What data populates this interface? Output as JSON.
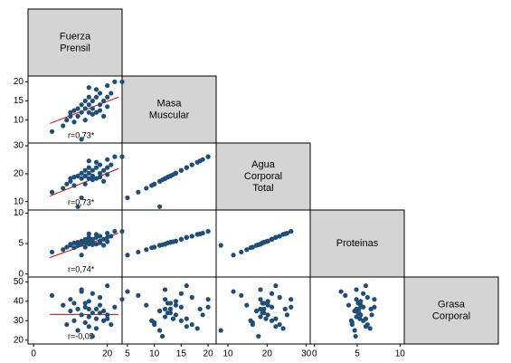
{
  "chart_data": {
    "type": "scatter_matrix",
    "color": "#1f4e79",
    "fit_color": "#e00000",
    "variables": [
      {
        "label": [
          "Fuerza",
          "Prensil"
        ],
        "lim": [
          -1.5,
          24
        ],
        "xticks": [
          0,
          20
        ]
      },
      {
        "label": [
          "Masa",
          "Muscular"
        ],
        "lim": [
          4,
          21.5
        ],
        "xticks": [
          5,
          10,
          15,
          20
        ],
        "yticks": [
          10,
          15,
          20
        ]
      },
      {
        "label": [
          "Agua",
          "Corporal",
          "Total"
        ],
        "lim": [
          7,
          31
        ],
        "xticks": [
          10,
          20,
          30
        ],
        "yticks": [
          10,
          20,
          30
        ]
      },
      {
        "label": [
          "Proteinas"
        ],
        "lim": [
          -0.5,
          10.5
        ],
        "xticks": [
          0,
          5,
          10
        ],
        "yticks": [
          0,
          5,
          10
        ]
      },
      {
        "label": [
          "Grasa",
          "Corporal"
        ],
        "lim": [
          18,
          52.5
        ],
        "yticks": [
          20,
          30,
          40,
          50
        ]
      }
    ],
    "correlations": [
      {
        "label": "r=0,73*",
        "fit_x": [
          4.4,
          23
        ],
        "fit_y": [
          9.1,
          16
        ]
      },
      {
        "label": "r=0,73*",
        "fit_x": [
          4.4,
          23
        ],
        "fit_y": [
          12,
          21.8
        ]
      },
      {
        "label": "r=0,74*",
        "fit_x": [
          4.4,
          23
        ],
        "fit_y": [
          2.7,
          6.7
        ]
      },
      {
        "label": "r=-0,05",
        "fit_x": [
          4.4,
          23
        ],
        "fit_y": [
          33.2,
          33.2
        ]
      }
    ],
    "observations": [
      [
        5,
        7,
        13.4,
        3.6,
        43
      ],
      [
        8,
        8.5,
        14.8,
        4.0,
        38
      ],
      [
        9,
        10,
        16.3,
        4.4,
        28
      ],
      [
        10,
        11,
        17.3,
        4.7,
        35
      ],
      [
        10,
        12,
        18.3,
        4.9,
        41
      ],
      [
        11,
        9.5,
        15.8,
        4.3,
        30
      ],
      [
        12,
        13,
        19.2,
        5.2,
        36
      ],
      [
        12,
        11,
        8.2,
        4.7,
        25
      ],
      [
        13,
        12,
        18.3,
        4.9,
        46
      ],
      [
        13,
        14,
        20.2,
        5.4,
        33
      ],
      [
        14,
        13,
        19.2,
        5.2,
        39
      ],
      [
        14,
        10,
        16.3,
        4.4,
        29
      ],
      [
        14,
        15,
        21.2,
        5.7,
        37
      ],
      [
        15,
        12,
        18.3,
        4.9,
        32
      ],
      [
        15,
        14,
        20.2,
        5.4,
        40
      ],
      [
        15,
        16,
        22.2,
        6.0,
        27
      ],
      [
        16,
        13,
        19.2,
        5.2,
        34
      ],
      [
        16,
        15,
        21.2,
        5.7,
        44
      ],
      [
        17,
        16,
        22.2,
        6.0,
        31
      ],
      [
        17,
        12,
        18.3,
        4.9,
        36
      ],
      [
        17,
        18,
        24.1,
        6.5,
        26
      ],
      [
        18,
        14,
        20.2,
        5.4,
        38
      ],
      [
        18,
        17,
        23.2,
        6.2,
        42
      ],
      [
        19,
        15,
        21.2,
        5.7,
        30
      ],
      [
        19,
        11,
        17.3,
        4.7,
        35
      ],
      [
        20,
        16,
        22.2,
        6.0,
        48
      ],
      [
        20,
        19,
        25.1,
        6.7,
        33
      ],
      [
        21,
        17,
        23.2,
        6.2,
        28
      ],
      [
        22,
        20,
        26.1,
        7.0,
        37
      ],
      [
        24,
        20,
        26.1,
        7.0,
        41
      ],
      [
        13,
        5,
        11.4,
        3.1,
        45
      ],
      [
        16,
        11.5,
        17.8,
        4.8,
        22
      ],
      [
        11,
        12.5,
        18.8,
        5.1,
        39
      ],
      [
        18,
        12.5,
        18.8,
        5.1,
        34
      ],
      [
        20,
        13.5,
        19.7,
        5.3,
        31
      ],
      [
        15,
        18.5,
        24.6,
        6.6,
        36
      ]
    ]
  }
}
